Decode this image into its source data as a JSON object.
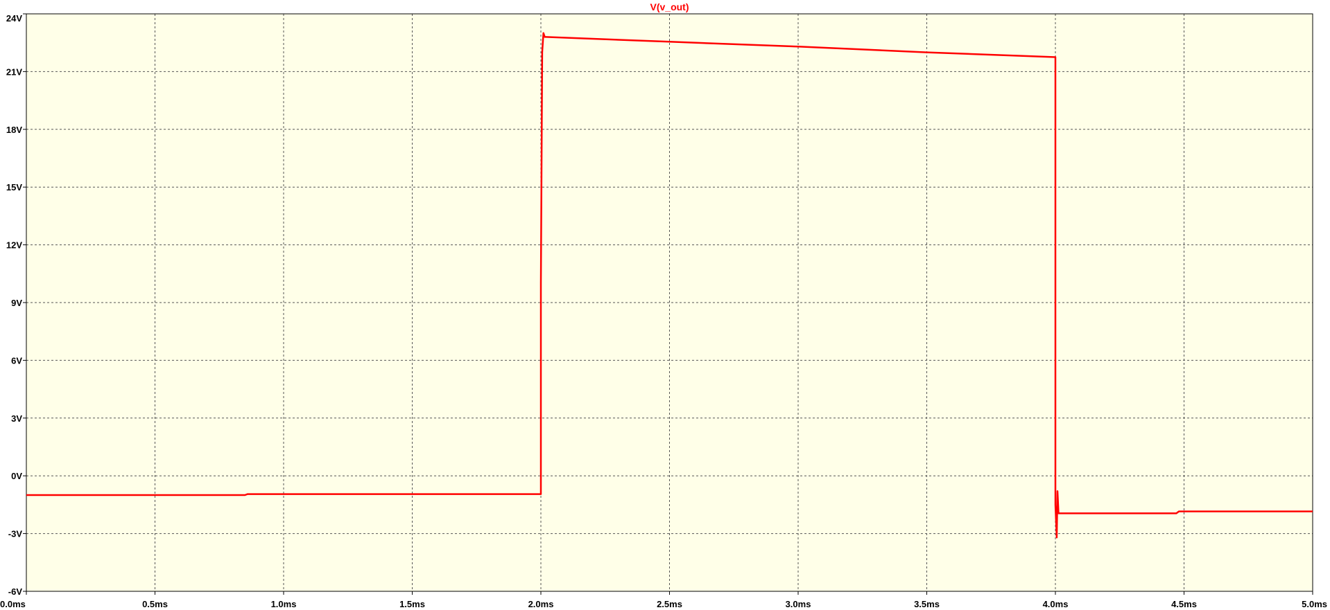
{
  "chart_data": {
    "type": "line",
    "title": "V(v_out)",
    "xlabel": "",
    "ylabel": "",
    "xlim": [
      0,
      5.0
    ],
    "ylim": [
      -6,
      24
    ],
    "x_ticks": [
      "0.0ms",
      "0.5ms",
      "1.0ms",
      "1.5ms",
      "2.0ms",
      "2.5ms",
      "3.0ms",
      "3.5ms",
      "4.0ms",
      "4.5ms",
      "5.0ms"
    ],
    "y_ticks": [
      "-6V",
      "-3V",
      "0V",
      "3V",
      "6V",
      "9V",
      "12V",
      "15V",
      "18V",
      "21V",
      "24V"
    ],
    "grid": true,
    "background_color": "#ffffe8",
    "grid_color": "#555555",
    "series": [
      {
        "color": "#ff0000",
        "x": [
          0.0,
          0.85,
          0.86,
          2.0,
          2.0,
          2.005,
          2.01,
          2.015,
          2.02,
          2.5,
          3.0,
          3.5,
          4.0,
          4.0,
          4.005,
          4.008,
          4.012,
          4.02,
          4.47,
          4.48,
          5.0
        ],
        "y": [
          -1.0,
          -1.0,
          -0.95,
          -0.95,
          10.0,
          22.0,
          23.0,
          22.8,
          22.8,
          22.55,
          22.3,
          22.0,
          21.75,
          -1.5,
          -3.2,
          -0.8,
          -1.95,
          -1.95,
          -1.95,
          -1.85,
          -1.85
        ]
      }
    ]
  }
}
